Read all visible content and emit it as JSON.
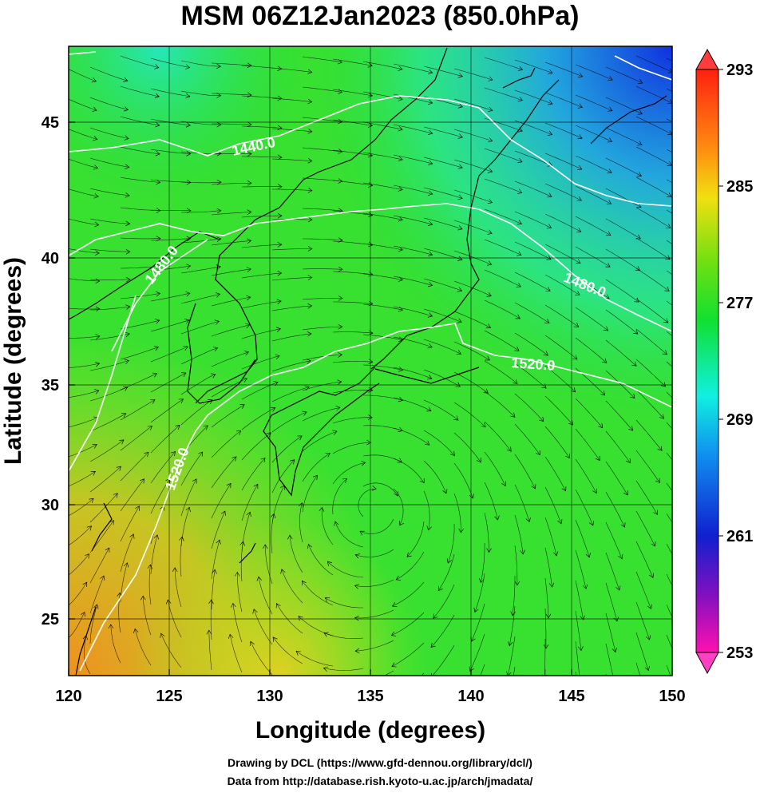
{
  "title": "MSM 06Z12Jan2023 (850.0hPa)",
  "xlabel": "Longitude (degrees)",
  "ylabel": "Latitude  (degrees)",
  "x_ticks": [
    "120",
    "125",
    "130",
    "135",
    "140",
    "145",
    "150"
  ],
  "y_ticks": [
    "25",
    "30",
    "35",
    "40",
    "45"
  ],
  "colorbar_ticks": [
    "293",
    "285",
    "277",
    "269",
    "261",
    "253"
  ],
  "contour_labels": [
    "1440.0",
    "1480.0",
    "1480.0",
    "1520.0",
    "1520.0"
  ],
  "credit_line1": "Drawing by DCL (https://www.gfd-dennou.org/library/dcl/)",
  "credit_line2": "Data from http://database.rish.kyoto-u.ac.jp/arch/jmadata/",
  "map": {
    "lon_range": [
      120,
      150
    ],
    "lat_range": [
      22.4,
      47.6
    ],
    "colorbar_range": [
      253,
      293
    ],
    "colors": {
      "warm": "#f0a020",
      "yellow_green": "#a8e020",
      "green": "#20e020",
      "cyan": "#20e8e8",
      "blue": "#2060f0",
      "contour": "#ffffff",
      "coast": "#000000"
    }
  }
}
